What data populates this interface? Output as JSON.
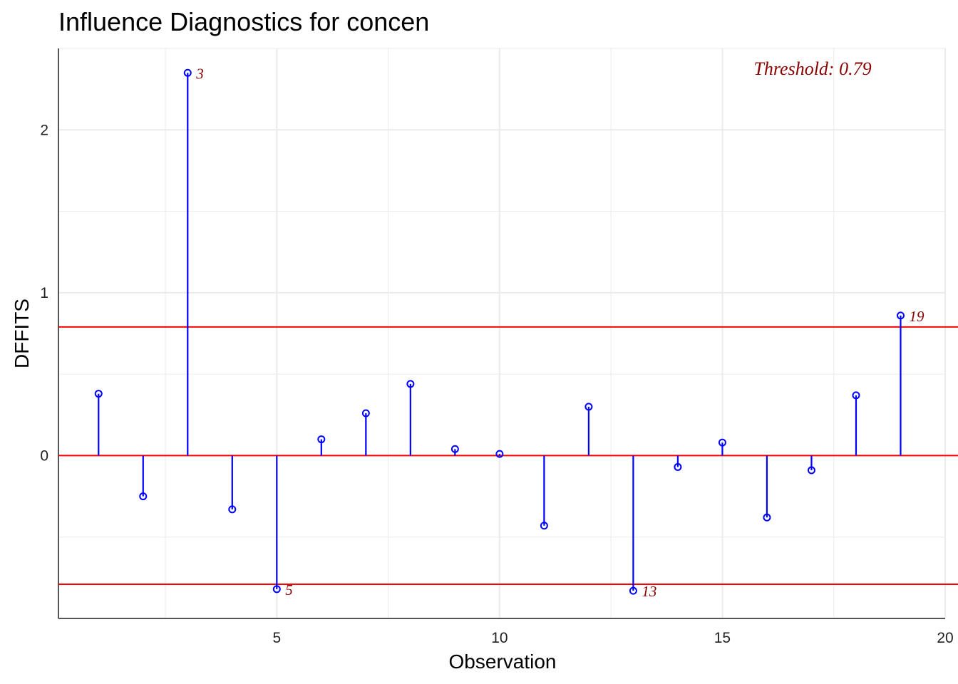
{
  "chart_data": {
    "type": "lollipop",
    "title": "Influence Diagnostics for concen",
    "xlabel": "Observation",
    "ylabel": "DFFITS",
    "xlim": [
      0.1,
      20
    ],
    "ylim": [
      -1.0,
      2.5
    ],
    "x_ticks": [
      5,
      10,
      15,
      20
    ],
    "y_ticks": [
      0,
      1,
      2
    ],
    "threshold": 0.79,
    "threshold_label": "Threshold: 0.79",
    "x": [
      1,
      2,
      3,
      4,
      5,
      6,
      7,
      8,
      9,
      10,
      11,
      12,
      13,
      14,
      15,
      16,
      17,
      18,
      19
    ],
    "values": [
      0.38,
      -0.25,
      2.35,
      -0.33,
      -0.82,
      0.1,
      0.26,
      0.44,
      0.04,
      0.01,
      -0.43,
      0.3,
      -0.83,
      -0.07,
      0.08,
      -0.38,
      -0.09,
      0.37,
      0.86
    ],
    "labeled_points": [
      {
        "x": 3,
        "label": "3"
      },
      {
        "x": 5,
        "label": "5"
      },
      {
        "x": 13,
        "label": "13"
      },
      {
        "x": 19,
        "label": "19"
      }
    ],
    "colors": {
      "stem": "#0000ff",
      "threshold_line": "#ff0000",
      "annotation": "#8b0000",
      "grid": "#ebebeb",
      "axis": "#555555"
    },
    "grid": true
  }
}
